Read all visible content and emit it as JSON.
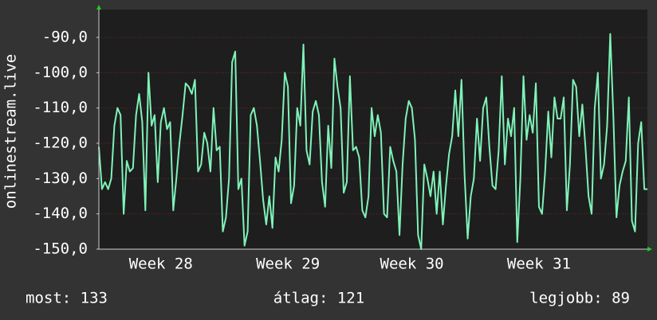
{
  "chart_data": {
    "type": "line",
    "y_label": "onlinestream.live",
    "color": "#7ff2b8",
    "ylim": [
      -150,
      -82.1
    ],
    "yticks": [
      {
        "value": -150,
        "label": "-150,0"
      },
      {
        "value": -140,
        "label": "-140,0"
      },
      {
        "value": -130,
        "label": "-130,0"
      },
      {
        "value": -120,
        "label": "-120,0"
      },
      {
        "value": -110,
        "label": "-110,0"
      },
      {
        "value": -100,
        "label": "-100,0"
      },
      {
        "value": -90,
        "label": "-90,0"
      }
    ],
    "grid": true,
    "categories": [
      null,
      null,
      null,
      null,
      null,
      null,
      null,
      null,
      null,
      null,
      null,
      null,
      null,
      null,
      null,
      null,
      null,
      null,
      null,
      null,
      "Week 28",
      null,
      null,
      null,
      null,
      null,
      null,
      null,
      null,
      null,
      null,
      null,
      null,
      null,
      null,
      null,
      null,
      null,
      null,
      null,
      null,
      null,
      null,
      null,
      null,
      null,
      null,
      null,
      null,
      null,
      null,
      null,
      null,
      null,
      null,
      null,
      null,
      null,
      null,
      null,
      null,
      "Week 29",
      null,
      null,
      null,
      null,
      null,
      null,
      null,
      null,
      null,
      null,
      null,
      null,
      null,
      null,
      null,
      null,
      null,
      null,
      null,
      null,
      null,
      null,
      null,
      null,
      null,
      null,
      null,
      null,
      null,
      null,
      null,
      null,
      null,
      null,
      null,
      null,
      null,
      null,
      null,
      "Week 30",
      null,
      null,
      null,
      null,
      null,
      null,
      null,
      null,
      null,
      null,
      null,
      null,
      null,
      null,
      null,
      null,
      null,
      null,
      null,
      null,
      null,
      null,
      null,
      null,
      null,
      null,
      null,
      null,
      null,
      null,
      null,
      null,
      null,
      null,
      null,
      null,
      null,
      null,
      null,
      null,
      "Week 31",
      null,
      null,
      null,
      null,
      null,
      null,
      null,
      null,
      null,
      null,
      null,
      null,
      null,
      null,
      null,
      null,
      null,
      null,
      null,
      null,
      null,
      null,
      null,
      null,
      null,
      null,
      null,
      null,
      null,
      null,
      null,
      null,
      null,
      null,
      null
    ],
    "values": [
      -121,
      -133,
      -131,
      -133,
      -130,
      -115,
      -110,
      -112,
      -140,
      -125,
      -128,
      -127,
      -112,
      -106,
      -114,
      -139,
      -100,
      -115,
      -112,
      -131,
      -114,
      -110,
      -116,
      -114,
      -139,
      -130,
      -120,
      -112,
      -103,
      -104,
      -106,
      -102,
      -128,
      -126,
      -117,
      -120,
      -128,
      -110,
      -122,
      -121,
      -145,
      -141,
      -130,
      -97,
      -94,
      -133,
      -130,
      -149,
      -145,
      -112,
      -110,
      -115,
      -125,
      -136,
      -143,
      -135,
      -144,
      -124,
      -128,
      -119,
      -100,
      -104,
      -137,
      -132,
      -110,
      -115,
      -92,
      -122,
      -126,
      -111,
      -108,
      -112,
      -131,
      -138,
      -115,
      -127,
      -96,
      -104,
      -110,
      -134,
      -131,
      -101,
      -122,
      -121,
      -124,
      -139,
      -141,
      -135,
      -110,
      -118,
      -112,
      -117,
      -140,
      -141,
      -121,
      -125,
      -128,
      -146,
      -126,
      -113,
      -108,
      -110,
      -119,
      -146,
      -150,
      -126,
      -130,
      -135,
      -128,
      -140,
      -128,
      -143,
      -132,
      -123,
      -118,
      -105,
      -118,
      -102,
      -129,
      -147,
      -135,
      -130,
      -113,
      -125,
      -110,
      -107,
      -121,
      -132,
      -133,
      -122,
      -101,
      -126,
      -113,
      -118,
      -110,
      -148,
      -130,
      -101,
      -119,
      -112,
      -117,
      -103,
      -138,
      -140,
      -128,
      -111,
      -124,
      -107,
      -113,
      -113,
      -107,
      -139,
      -126,
      -102,
      -104,
      -118,
      -109,
      -121,
      -135,
      -140,
      -110,
      -100,
      -130,
      -126,
      -115,
      -89,
      -112,
      -141,
      -132,
      -128,
      -125,
      -107,
      -142,
      -145,
      -120,
      -114,
      -133,
      -133
    ],
    "footer": [
      "most: 133",
      "átlag: 121",
      "legjobb: 89"
    ]
  }
}
